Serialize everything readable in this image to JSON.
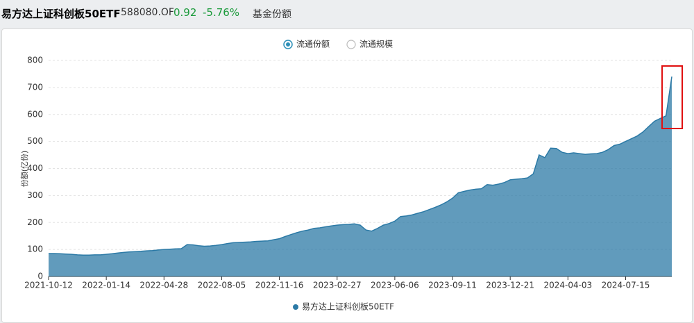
{
  "header": {
    "fund_name": "易方达上证科创板50ETF",
    "code": "588080.OF",
    "price": "0.92",
    "change": "-5.76%",
    "tab": "基金份额"
  },
  "options": [
    "流通份额",
    "流通规模"
  ],
  "chart_data": {
    "type": "area",
    "y_label": "份额(亿份)",
    "categories": [
      "2021-10-12",
      null,
      null,
      null,
      null,
      null,
      null,
      null,
      null,
      null,
      "2022-01-14",
      null,
      null,
      null,
      null,
      null,
      null,
      null,
      null,
      null,
      "2022-04-28",
      null,
      null,
      null,
      null,
      null,
      null,
      null,
      null,
      null,
      "2022-08-05",
      null,
      null,
      null,
      null,
      null,
      null,
      null,
      null,
      null,
      "2022-11-16",
      null,
      null,
      null,
      null,
      null,
      null,
      null,
      null,
      null,
      "2023-02-27",
      null,
      null,
      null,
      null,
      null,
      null,
      null,
      null,
      null,
      "2023-06-06",
      null,
      null,
      null,
      null,
      null,
      null,
      null,
      null,
      null,
      "2023-09-11",
      null,
      null,
      null,
      null,
      null,
      null,
      null,
      null,
      null,
      "2023-12-21",
      null,
      null,
      null,
      null,
      null,
      null,
      null,
      null,
      null,
      "2024-04-03",
      null,
      null,
      null,
      null,
      null,
      null,
      null,
      null,
      null,
      "2024-07-15",
      null,
      null,
      null,
      null,
      null,
      null,
      null,
      null
    ],
    "series": [
      {
        "name": "易方达上证科创板50ETF",
        "color": "#2c7aa6",
        "values": [
          85,
          85,
          84,
          83,
          82,
          80,
          79,
          79,
          80,
          80,
          82,
          84,
          87,
          89,
          91,
          92,
          93,
          95,
          96,
          98,
          100,
          101,
          102,
          103,
          118,
          117,
          114,
          112,
          113,
          115,
          118,
          122,
          125,
          126,
          127,
          128,
          130,
          131,
          132,
          136,
          140,
          148,
          155,
          162,
          168,
          172,
          178,
          180,
          184,
          187,
          190,
          192,
          193,
          195,
          190,
          172,
          168,
          178,
          190,
          196,
          205,
          222,
          224,
          228,
          234,
          240,
          248,
          256,
          265,
          276,
          290,
          310,
          315,
          320,
          323,
          325,
          340,
          338,
          342,
          348,
          358,
          360,
          362,
          365,
          380,
          450,
          440,
          475,
          474,
          460,
          455,
          458,
          455,
          452,
          454,
          455,
          460,
          470,
          485,
          490,
          500,
          510,
          520,
          535,
          555,
          575,
          585,
          595,
          740
        ]
      }
    ],
    "ylim": [
      0,
      800
    ],
    "yticks": [
      0,
      100,
      200,
      300,
      400,
      500,
      600,
      700,
      800
    ],
    "grid": true
  }
}
